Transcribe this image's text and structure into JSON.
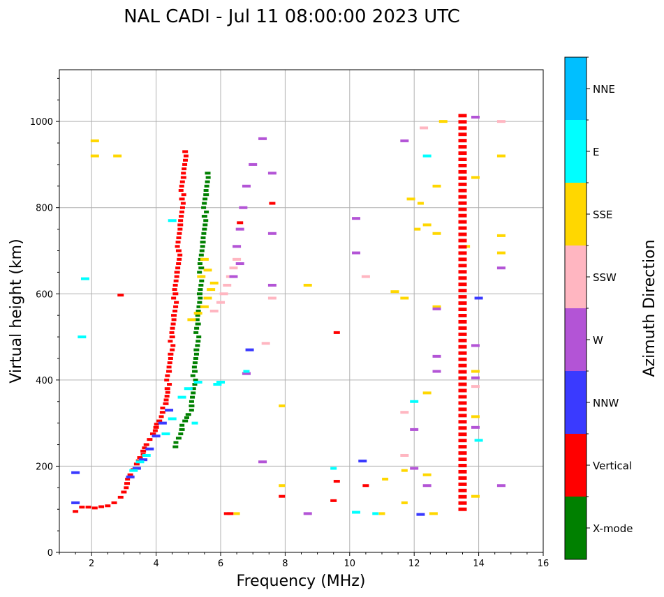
{
  "chart_data": {
    "type": "scatter",
    "title": "NAL CADI - Jul 11 08:00:00 2023 UTC",
    "xlabel": "Frequency (MHz)",
    "ylabel": "Virtual height (km)",
    "xlim": [
      1,
      16
    ],
    "ylim": [
      0,
      1120
    ],
    "xticks": [
      2,
      4,
      6,
      8,
      10,
      12,
      14,
      16
    ],
    "yticks": [
      0,
      200,
      400,
      600,
      800,
      1000
    ],
    "grid": true,
    "colorbar": {
      "label": "Azimuth Direction",
      "categories": [
        "X-mode",
        "Vertical",
        "NNW",
        "W",
        "SSW",
        "SSE",
        "E",
        "NNE"
      ],
      "colors": [
        "#008000",
        "#ff0000",
        "#3a3aff",
        "#b354d6",
        "#ffb6c1",
        "#ffd700",
        "#00ffff",
        "#00bfff"
      ]
    },
    "traces": [
      {
        "category": "Vertical",
        "points": [
          [
            1.5,
            95
          ],
          [
            1.7,
            105
          ],
          [
            1.9,
            105
          ],
          [
            2.1,
            103
          ],
          [
            2.3,
            106
          ],
          [
            2.5,
            108
          ],
          [
            2.7,
            115
          ],
          [
            2.9,
            128
          ],
          [
            3.0,
            140
          ],
          [
            3.1,
            160
          ],
          [
            3.2,
            180
          ],
          [
            3.3,
            192
          ],
          [
            3.4,
            205
          ],
          [
            3.5,
            220
          ],
          [
            3.6,
            235
          ],
          [
            3.7,
            250
          ],
          [
            3.8,
            262
          ],
          [
            3.9,
            275
          ],
          [
            4.0,
            290
          ],
          [
            4.1,
            305
          ],
          [
            4.2,
            325
          ],
          [
            4.3,
            345
          ],
          [
            4.35,
            380
          ],
          [
            4.4,
            420
          ],
          [
            4.45,
            460
          ],
          [
            4.5,
            500
          ],
          [
            4.55,
            550
          ],
          [
            4.6,
            600
          ],
          [
            4.65,
            650
          ],
          [
            4.7,
            700
          ],
          [
            4.75,
            760
          ],
          [
            4.8,
            820
          ],
          [
            4.85,
            870
          ],
          [
            4.9,
            930
          ]
        ]
      },
      {
        "category": "X-mode",
        "points": [
          [
            4.6,
            245
          ],
          [
            4.7,
            265
          ],
          [
            4.8,
            285
          ],
          [
            4.9,
            305
          ],
          [
            5.0,
            320
          ],
          [
            5.1,
            340
          ],
          [
            5.15,
            380
          ],
          [
            5.2,
            420
          ],
          [
            5.25,
            470
          ],
          [
            5.3,
            530
          ],
          [
            5.35,
            600
          ],
          [
            5.4,
            660
          ],
          [
            5.45,
            720
          ],
          [
            5.5,
            780
          ],
          [
            5.55,
            830
          ],
          [
            5.6,
            880
          ]
        ]
      },
      {
        "category": "NNW",
        "points": [
          [
            3.2,
            175
          ],
          [
            3.4,
            195
          ],
          [
            3.6,
            215
          ],
          [
            3.8,
            240
          ],
          [
            4.0,
            270
          ],
          [
            4.2,
            300
          ],
          [
            4.4,
            330
          ],
          [
            1.5,
            185
          ],
          [
            1.5,
            115
          ],
          [
            6.8,
            415
          ],
          [
            6.9,
            470
          ],
          [
            10.4,
            212
          ],
          [
            12.2,
            88
          ],
          [
            14.0,
            590
          ]
        ]
      },
      {
        "category": "E",
        "points": [
          [
            3.3,
            190
          ],
          [
            3.5,
            210
          ],
          [
            3.7,
            225
          ],
          [
            4.3,
            275
          ],
          [
            4.5,
            310
          ],
          [
            4.8,
            360
          ],
          [
            5.0,
            380
          ],
          [
            5.3,
            395
          ],
          [
            5.9,
            390
          ],
          [
            6.0,
            395
          ],
          [
            1.8,
            635
          ],
          [
            1.7,
            500
          ],
          [
            10.2,
            93
          ],
          [
            12.4,
            920
          ],
          [
            14.0,
            260
          ],
          [
            12.0,
            350
          ],
          [
            4.5,
            770
          ]
        ]
      },
      {
        "category": "SSE",
        "points": [
          [
            2.1,
            955
          ],
          [
            2.1,
            920
          ],
          [
            2.8,
            920
          ],
          [
            5.1,
            540
          ],
          [
            5.3,
            555
          ],
          [
            5.5,
            570
          ],
          [
            5.6,
            590
          ],
          [
            5.7,
            610
          ],
          [
            5.8,
            625
          ],
          [
            5.4,
            640
          ],
          [
            5.6,
            655
          ],
          [
            5.5,
            680
          ],
          [
            11.7,
            590
          ],
          [
            11.9,
            820
          ],
          [
            12.4,
            760
          ],
          [
            12.7,
            570
          ],
          [
            12.7,
            850
          ],
          [
            12.7,
            740
          ],
          [
            12.9,
            1000
          ],
          [
            13.6,
            710
          ],
          [
            13.9,
            870
          ],
          [
            14.7,
            695
          ],
          [
            14.7,
            735
          ],
          [
            14.7,
            920
          ],
          [
            12.4,
            370
          ],
          [
            12.4,
            180
          ],
          [
            12.6,
            90
          ],
          [
            13.9,
            130
          ],
          [
            13.9,
            315
          ],
          [
            13.9,
            420
          ],
          [
            8.7,
            620
          ],
          [
            11.4,
            605
          ]
        ]
      },
      {
        "category": "SSW",
        "points": [
          [
            5.8,
            560
          ],
          [
            6.0,
            580
          ],
          [
            6.1,
            600
          ],
          [
            6.2,
            620
          ],
          [
            6.3,
            640
          ],
          [
            6.4,
            660
          ],
          [
            6.5,
            680
          ],
          [
            7.6,
            590
          ],
          [
            7.4,
            485
          ],
          [
            12.3,
            985
          ],
          [
            13.9,
            385
          ],
          [
            11.7,
            325
          ],
          [
            11.7,
            225
          ],
          [
            14.7,
            1000
          ],
          [
            10.5,
            640
          ]
        ]
      },
      {
        "category": "W",
        "points": [
          [
            6.4,
            640
          ],
          [
            6.6,
            670
          ],
          [
            6.5,
            710
          ],
          [
            6.6,
            750
          ],
          [
            6.7,
            800
          ],
          [
            6.8,
            850
          ],
          [
            7.0,
            900
          ],
          [
            7.3,
            960
          ],
          [
            7.6,
            880
          ],
          [
            7.6,
            740
          ],
          [
            7.6,
            620
          ],
          [
            12.7,
            565
          ],
          [
            12.7,
            455
          ],
          [
            12.7,
            420
          ],
          [
            12.4,
            155
          ],
          [
            14.7,
            155
          ],
          [
            14.7,
            660
          ],
          [
            10.2,
            695
          ],
          [
            10.2,
            775
          ],
          [
            11.7,
            955
          ],
          [
            12.0,
            285
          ],
          [
            12.0,
            195
          ],
          [
            13.9,
            1010
          ],
          [
            13.9,
            480
          ],
          [
            13.9,
            290
          ],
          [
            13.9,
            405
          ],
          [
            8.7,
            90
          ],
          [
            7.3,
            210
          ],
          [
            6.8,
            415
          ]
        ]
      }
    ],
    "series_13_5": {
      "category": "Vertical",
      "x": 13.5,
      "y_from": 100,
      "y_to": 1015,
      "step": 14.5
    },
    "scatter_misc": [
      {
        "category": "Vertical",
        "points": [
          [
            6.2,
            90
          ],
          [
            6.3,
            90
          ],
          [
            9.5,
            120
          ],
          [
            9.6,
            165
          ],
          [
            9.6,
            510
          ],
          [
            10.5,
            155
          ],
          [
            7.9,
            130
          ],
          [
            2.9,
            597
          ],
          [
            6.6,
            765
          ],
          [
            7.6,
            810
          ]
        ]
      },
      {
        "category": "SSE",
        "points": [
          [
            6.5,
            90
          ],
          [
            7.9,
            340
          ],
          [
            7.9,
            155
          ],
          [
            11.7,
            115
          ],
          [
            11.7,
            190
          ],
          [
            11.1,
            170
          ],
          [
            11.0,
            90
          ],
          [
            12.2,
            810
          ],
          [
            12.1,
            750
          ]
        ]
      },
      {
        "category": "E",
        "points": [
          [
            9.5,
            195
          ],
          [
            10.8,
            90
          ],
          [
            6.8,
            420
          ],
          [
            5.2,
            300
          ]
        ]
      }
    ]
  }
}
